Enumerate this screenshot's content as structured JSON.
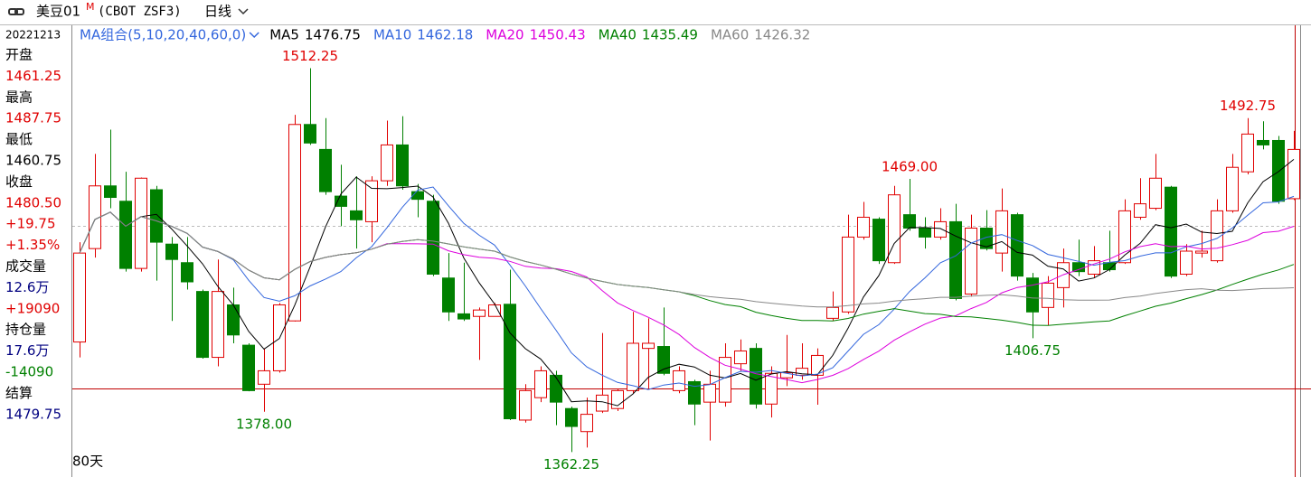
{
  "header": {
    "symbol": "美豆01",
    "mark": "M",
    "code": "(CBOT ZSF3)",
    "period": "日线"
  },
  "side_panel": {
    "date": "20221213",
    "rows": [
      {
        "text": "开盘"
      },
      {
        "text": "1461.25",
        "color": "#e00000"
      },
      {
        "text": "最高"
      },
      {
        "text": "1487.75",
        "color": "#e00000"
      },
      {
        "text": "最低"
      },
      {
        "text": "1460.75",
        "color": "#000000"
      },
      {
        "text": "收盘"
      },
      {
        "text": "1480.50",
        "color": "#e00000"
      },
      {
        "text": "+19.75",
        "color": "#e00000"
      },
      {
        "text": "+1.35%",
        "color": "#e00000"
      },
      {
        "text": "成交量"
      },
      {
        "text": "12.6万",
        "color": "#000080"
      },
      {
        "text": "+19090",
        "color": "#e00000"
      },
      {
        "text": "持仓量"
      },
      {
        "text": "17.6万",
        "color": "#000080"
      },
      {
        "text": "-14090",
        "color": "#008000"
      },
      {
        "text": "结算"
      },
      {
        "text": "1479.75",
        "color": "#000080"
      }
    ]
  },
  "chart_data": {
    "type": "candlestick",
    "open": [
      1405.25,
      1441.75,
      1466.25,
      1460.25,
      1434,
      1464.75,
      1443.5,
      1436.25,
      1425,
      1399.25,
      1419.75,
      1404,
      1388.75,
      1394,
      1413.5,
      1490.25,
      1480.5,
      1462.25,
      1456.5,
      1452.25,
      1468.25,
      1482.25,
      1464,
      1460.25,
      1430.25,
      1416.25,
      1415.25,
      1415.25,
      1420,
      1374.75,
      1383.5,
      1392.25,
      1379.25,
      1370.25,
      1378.25,
      1379.25,
      1386.25,
      1402.75,
      1403.5,
      1386.25,
      1389.75,
      1381.75,
      1381.75,
      1396.75,
      1402.75,
      1381,
      1391.25,
      1392.25,
      1392.25,
      1414.5,
      1417,
      1446.25,
      1453.25,
      1436.25,
      1455,
      1449.75,
      1446.25,
      1452.25,
      1424,
      1449.75,
      1440,
      1455,
      1430.25,
      1418.75,
      1426.5,
      1436.25,
      1431.75,
      1436.25,
      1436.25,
      1454,
      1457.5,
      1465.75,
      1431.75,
      1440,
      1437,
      1456.5,
      1471.75,
      1484,
      1484,
      1461.25
    ],
    "high": [
      1444.25,
      1478.75,
      1488.25,
      1471.75,
      1469.5,
      1466.25,
      1446.25,
      1446.25,
      1425.75,
      1437.5,
      1426.5,
      1404.75,
      1402.75,
      1420.5,
      1494,
      1512.25,
      1492.75,
      1474.5,
      1470,
      1470,
      1491.75,
      1493.5,
      1467,
      1462.75,
      1440,
      1436.25,
      1418.75,
      1420.5,
      1433.5,
      1388.75,
      1395.75,
      1394,
      1380,
      1383.5,
      1408.75,
      1387,
      1417,
      1414.5,
      1418.75,
      1395.75,
      1390.5,
      1394,
      1404.75,
      1406.25,
      1404.75,
      1395.75,
      1408,
      1404.75,
      1402.75,
      1425,
      1455,
      1460,
      1454,
      1466.25,
      1469,
      1454,
      1457.5,
      1459.25,
      1455,
      1456.75,
      1465.25,
      1455.75,
      1432.25,
      1431,
      1441.75,
      1445.25,
      1442.75,
      1448.75,
      1461,
      1469.25,
      1478.75,
      1466.25,
      1443.5,
      1448.75,
      1461,
      1478.75,
      1492.75,
      1491.5,
      1485.75,
      1487.75
    ],
    "low": [
      1399.25,
      1438.25,
      1457.5,
      1432.75,
      1432.75,
      1429.25,
      1413.5,
      1425.75,
      1398.75,
      1395.75,
      1404.75,
      1386,
      1378,
      1393.25,
      1413.25,
      1482.25,
      1462.75,
      1450.5,
      1441.75,
      1444.25,
      1466.25,
      1464.75,
      1454,
      1431,
      1413.5,
      1413.5,
      1398.25,
      1417,
      1374.75,
      1373.75,
      1381.75,
      1372.75,
      1362.25,
      1364,
      1377.5,
      1378.25,
      1385.25,
      1387,
      1392.25,
      1385.25,
      1372.75,
      1366.75,
      1380,
      1394,
      1379.25,
      1375.75,
      1388,
      1390.5,
      1380.75,
      1413.5,
      1416.25,
      1445.25,
      1435.75,
      1435.75,
      1448.75,
      1441.75,
      1445.25,
      1421.5,
      1423,
      1441,
      1432.75,
      1429.25,
      1406.75,
      1411.75,
      1418.75,
      1431,
      1430.25,
      1432.75,
      1435.75,
      1453,
      1456.75,
      1430.25,
      1431,
      1438.25,
      1436.25,
      1455.75,
      1470.75,
      1480.5,
      1459.25,
      1460.75
    ],
    "close": [
      1440,
      1466.25,
      1461.75,
      1434,
      1469.25,
      1444.25,
      1437.5,
      1428.75,
      1399.25,
      1425,
      1408,
      1386.25,
      1394,
      1419.75,
      1490.25,
      1483,
      1464,
      1458.25,
      1453,
      1468.25,
      1482.25,
      1466.25,
      1461,
      1431.75,
      1417,
      1414.25,
      1417.75,
      1419.75,
      1375.25,
      1386.25,
      1394,
      1381.75,
      1372.25,
      1377,
      1384.5,
      1386.25,
      1404.75,
      1404.75,
      1393,
      1394,
      1381,
      1388.75,
      1399.25,
      1401.75,
      1381,
      1393,
      1393.25,
      1395,
      1400,
      1418.75,
      1446.25,
      1454,
      1437,
      1462.75,
      1449.75,
      1446.25,
      1452.25,
      1422.25,
      1449.75,
      1441.75,
      1456.5,
      1431,
      1417,
      1428.25,
      1436.25,
      1432.75,
      1437,
      1433.5,
      1456.5,
      1459.25,
      1469.25,
      1431,
      1440.75,
      1440.75,
      1456.5,
      1473.5,
      1486.5,
      1482.25,
      1460.25,
      1480.5
    ],
    "ylim": [
      1352.5,
      1529
    ],
    "up_color": "#e00000",
    "down_color": "#008000",
    "ma_group": "MA组合(5,10,20,40,60,0)",
    "ma": [
      {
        "name": "MA5",
        "period": 5,
        "value": 1476.75,
        "color": "#000000"
      },
      {
        "name": "MA10",
        "period": 10,
        "value": 1462.18,
        "color": "#3366dd"
      },
      {
        "name": "MA20",
        "period": 20,
        "value": 1450.43,
        "color": "#dd00dd"
      },
      {
        "name": "MA40",
        "period": 40,
        "value": 1435.49,
        "color": "#008000"
      },
      {
        "name": "MA60",
        "period": 60,
        "value": 1426.32,
        "color": "#888888"
      }
    ],
    "extremes": [
      {
        "label": "1512.25",
        "at": 15,
        "side": "high"
      },
      {
        "label": "1378.00",
        "at": 12,
        "side": "low"
      },
      {
        "label": "1362.25",
        "at": 32,
        "side": "low"
      },
      {
        "label": "1469.00",
        "at": 54,
        "side": "high"
      },
      {
        "label": "1406.75",
        "at": 62,
        "side": "low"
      },
      {
        "label": "1492.75",
        "at": 76,
        "side": "high"
      }
    ],
    "span_label": "80天"
  }
}
